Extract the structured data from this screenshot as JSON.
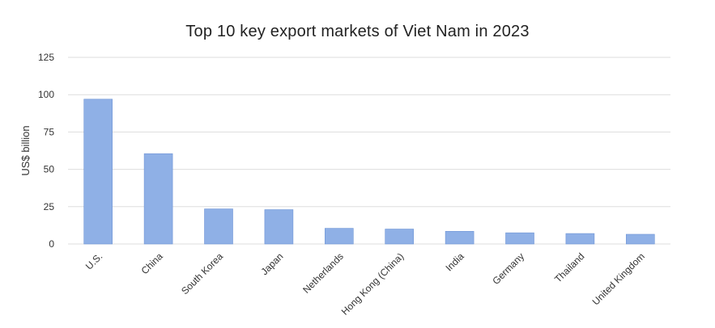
{
  "chart_data": {
    "type": "bar",
    "title": "Top 10 key export markets of Viet Nam in 2023",
    "xlabel": "",
    "ylabel": "US$ billion",
    "categories": [
      "U.S.",
      "China",
      "South Korea",
      "Japan",
      "Netherlands",
      "Hong Kong (China)",
      "India",
      "Germany",
      "Thailand",
      "United Kingdom"
    ],
    "values": [
      97,
      60.5,
      23.5,
      23,
      10.5,
      10,
      8.5,
      7.5,
      7,
      6.5
    ],
    "ylim": [
      0,
      125
    ],
    "yticks": [
      "0",
      "25",
      "50",
      "75",
      "100",
      "125"
    ],
    "grid": true,
    "legend": "none",
    "colors": {
      "bar": "#8fb0e6",
      "bar_edge": "#6f95d6",
      "grid": "#dddddd"
    }
  }
}
